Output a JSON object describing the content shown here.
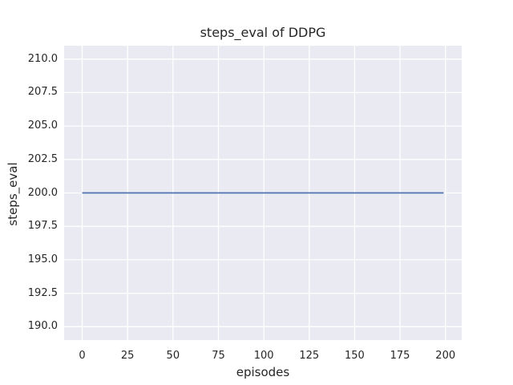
{
  "figure": {
    "background": "#ffffff",
    "text_color": "#262626"
  },
  "chart_data": {
    "type": "line",
    "title": "steps_eval of DDPG",
    "xlabel": "episodes",
    "ylabel": "steps_eval",
    "x_ticks": [
      0,
      25,
      50,
      75,
      100,
      125,
      150,
      175,
      200
    ],
    "x_tick_labels": [
      "0",
      "25",
      "50",
      "75",
      "100",
      "125",
      "150",
      "175",
      "200"
    ],
    "y_ticks": [
      190,
      192.5,
      195,
      197.5,
      200,
      202.5,
      205,
      207.5,
      210
    ],
    "y_tick_labels": [
      "190.0",
      "192.5",
      "195.0",
      "197.5",
      "200.0",
      "202.5",
      "205.0",
      "207.5",
      "210.0"
    ],
    "xlim": [
      -9.95,
      208.95
    ],
    "ylim": [
      189,
      211
    ],
    "grid": true,
    "legend_position": "none",
    "plot_bg": "#eaeaf2",
    "grid_color": "#ffffff",
    "grid_width": 1.3,
    "line_width": 1.8,
    "series": [
      {
        "name": "DDPG",
        "color": "#4c72b0",
        "x": [
          0,
          199
        ],
        "y": [
          200,
          200
        ]
      }
    ]
  }
}
